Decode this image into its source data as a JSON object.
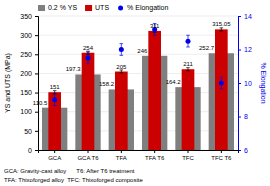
{
  "chart_data": {
    "type": "bar",
    "categories": [
      "GCA",
      "GCA T6",
      "TFA",
      "TFA T6",
      "TFC",
      "TFC T6"
    ],
    "series": [
      {
        "name": "0.2 % YS",
        "color": "#7f7f7f",
        "values": [
          110.5,
          197.3,
          158.2,
          246,
          164.2,
          252.7
        ]
      },
      {
        "name": "UTS",
        "color": "#cc0000",
        "values": [
          151,
          254,
          205,
          311,
          211,
          315.05
        ],
        "error": [
          4,
          4,
          4,
          4,
          4,
          4
        ]
      },
      {
        "name": "% Elongation",
        "color": "#0000ee",
        "type": "scatter",
        "marker": "circle",
        "axis": "y2",
        "values": [
          9.0,
          11.5,
          12.0,
          13.2,
          12.5,
          10.0
        ],
        "error": [
          0.35,
          0.35,
          0.35,
          0.35,
          0.35,
          0.35
        ]
      }
    ],
    "ylabel": "YS and UTS (MPa)",
    "y2label": "% Elongation",
    "ylim": [
      0,
      350
    ],
    "yticks": [
      0,
      50,
      100,
      150,
      200,
      250,
      300,
      350
    ],
    "y2lim": [
      6,
      14
    ],
    "y2ticks": [
      6,
      8,
      10,
      12,
      14
    ],
    "grid": true,
    "legend": "upper left",
    "data_labels": true,
    "annotations": [
      "GCA: Gravity-cast alloy      T6: After T6 treatment",
      "TFA: Thixoforged alloy  TFC: Thixoforged composite"
    ]
  }
}
